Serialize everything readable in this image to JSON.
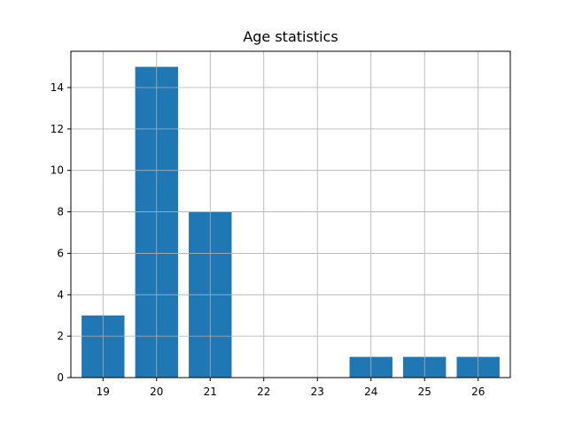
{
  "chart_data": {
    "type": "bar",
    "title": "Age statistics",
    "xlabel": "",
    "ylabel": "",
    "categories": [
      19,
      20,
      21,
      22,
      23,
      24,
      25,
      26
    ],
    "values": [
      3,
      15,
      8,
      0,
      0,
      1,
      1,
      1
    ],
    "x_ticks": [
      "19",
      "20",
      "21",
      "22",
      "23",
      "24",
      "25",
      "26"
    ],
    "y_ticks": [
      "0",
      "2",
      "4",
      "6",
      "8",
      "10",
      "12",
      "14"
    ],
    "y_tick_values": [
      0,
      2,
      4,
      6,
      8,
      10,
      12,
      14
    ],
    "xlim": [
      18.4,
      26.6
    ],
    "ylim": [
      0,
      15.75
    ],
    "grid": true,
    "legend": "none",
    "colors": {
      "bar": "#1f77b4",
      "grid": "#b0b0b0",
      "axis": "#000000"
    }
  }
}
